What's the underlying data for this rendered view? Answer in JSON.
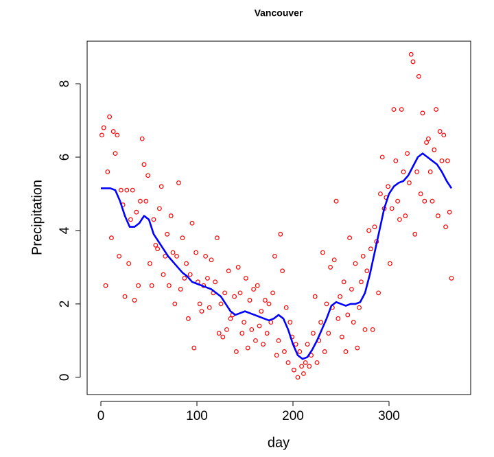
{
  "chart_data": {
    "type": "scatter",
    "title": "Vancouver",
    "xlabel": "day",
    "ylabel": "Precipitation",
    "xlim": [
      -14.3,
      385
    ],
    "ylim": [
      -0.47,
      9.16
    ],
    "xticks": [
      0,
      100,
      200,
      300
    ],
    "yticks": [
      0,
      2,
      4,
      6,
      8
    ],
    "series": [
      {
        "mode": "points",
        "color": "#ff0000",
        "x": [
          1,
          3,
          5,
          7,
          9,
          11,
          13,
          15,
          17,
          19,
          21,
          23,
          25,
          27,
          29,
          31,
          33,
          35,
          37,
          39,
          41,
          43,
          45,
          47,
          49,
          51,
          53,
          55,
          57,
          59,
          61,
          63,
          65,
          67,
          69,
          71,
          73,
          75,
          77,
          79,
          81,
          83,
          85,
          87,
          89,
          91,
          93,
          95,
          97,
          99,
          101,
          103,
          105,
          107,
          109,
          111,
          113,
          115,
          117,
          119,
          121,
          123,
          125,
          127,
          129,
          131,
          133,
          135,
          137,
          139,
          141,
          143,
          145,
          147,
          149,
          151,
          153,
          155,
          157,
          159,
          161,
          163,
          165,
          167,
          169,
          171,
          173,
          175,
          177,
          179,
          181,
          183,
          185,
          187,
          189,
          191,
          193,
          195,
          197,
          199,
          201,
          203,
          205,
          207,
          209,
          211,
          213,
          215,
          217,
          219,
          221,
          223,
          225,
          227,
          229,
          231,
          233,
          235,
          237,
          239,
          241,
          243,
          245,
          247,
          249,
          251,
          253,
          255,
          257,
          259,
          261,
          263,
          265,
          267,
          269,
          271,
          273,
          275,
          277,
          279,
          281,
          283,
          285,
          287,
          289,
          291,
          293,
          295,
          297,
          299,
          301,
          303,
          305,
          307,
          309,
          311,
          313,
          315,
          317,
          319,
          321,
          323,
          325,
          327,
          329,
          331,
          333,
          335,
          337,
          339,
          341,
          343,
          345,
          347,
          349,
          351,
          353,
          355,
          357,
          359,
          361,
          363,
          365
        ],
        "values": [
          6.6,
          6.8,
          2.5,
          5.6,
          7.1,
          3.8,
          6.7,
          6.1,
          6.6,
          3.3,
          5.1,
          4.7,
          2.2,
          5.1,
          3.1,
          4.3,
          5.1,
          2.1,
          4.5,
          2.5,
          4.8,
          6.5,
          5.8,
          4.8,
          5.5,
          3.1,
          2.5,
          4.3,
          3.6,
          3.5,
          4.6,
          5.2,
          2.8,
          3.3,
          3.9,
          2.5,
          4.4,
          3.4,
          2.0,
          3.3,
          5.3,
          2.4,
          3.8,
          2.7,
          3.1,
          1.6,
          2.8,
          4.2,
          0.8,
          3.4,
          2.6,
          2.0,
          1.8,
          2.5,
          3.3,
          2.7,
          1.9,
          3.2,
          2.3,
          2.6,
          3.8,
          1.2,
          2.0,
          1.1,
          2.3,
          1.3,
          2.9,
          1.6,
          1.7,
          2.2,
          0.7,
          3.0,
          2.3,
          1.2,
          1.5,
          2.7,
          0.8,
          2.1,
          1.3,
          2.4,
          1.0,
          2.5,
          1.4,
          1.8,
          0.9,
          2.1,
          1.2,
          2.0,
          1.5,
          2.3,
          3.3,
          0.6,
          1.0,
          3.9,
          2.9,
          0.7,
          1.9,
          0.4,
          1.5,
          1.1,
          0.2,
          0.9,
          0.0,
          0.7,
          0.3,
          0.1,
          0.4,
          0.9,
          0.3,
          0.6,
          1.2,
          2.2,
          0.4,
          1.0,
          1.5,
          3.4,
          0.7,
          2.0,
          1.2,
          3.0,
          1.9,
          3.2,
          4.8,
          1.6,
          2.2,
          1.1,
          2.6,
          0.7,
          1.7,
          3.8,
          2.4,
          1.5,
          3.1,
          0.8,
          1.9,
          2.6,
          3.3,
          1.3,
          2.9,
          4.0,
          3.5,
          1.3,
          4.1,
          3.7,
          2.3,
          5.0,
          6.0,
          4.6,
          4.9,
          5.2,
          3.1,
          4.6,
          7.3,
          5.9,
          4.8,
          4.3,
          7.3,
          5.6,
          4.4,
          6.1,
          5.3,
          8.8,
          8.6,
          3.9,
          5.6,
          8.2,
          5.0,
          7.2,
          4.8,
          6.4,
          6.5,
          5.6,
          4.8,
          6.2,
          7.3,
          4.4,
          6.7,
          5.9,
          6.6,
          4.1,
          5.9,
          4.5,
          2.7
        ]
      },
      {
        "mode": "line",
        "color": "#0000ff",
        "x": [
          0,
          5,
          10,
          15,
          20,
          25,
          30,
          35,
          40,
          45,
          50,
          55,
          60,
          65,
          70,
          75,
          80,
          85,
          90,
          95,
          100,
          105,
          110,
          115,
          120,
          125,
          130,
          135,
          140,
          145,
          150,
          155,
          160,
          165,
          170,
          175,
          180,
          185,
          190,
          195,
          200,
          205,
          210,
          215,
          220,
          225,
          230,
          235,
          240,
          245,
          250,
          255,
          260,
          265,
          270,
          275,
          280,
          285,
          290,
          295,
          300,
          305,
          310,
          315,
          320,
          325,
          330,
          335,
          340,
          345,
          350,
          355,
          360,
          365
        ],
        "values": [
          5.15,
          5.15,
          5.15,
          5.1,
          4.8,
          4.4,
          4.1,
          4.1,
          4.2,
          4.4,
          4.3,
          3.9,
          3.7,
          3.5,
          3.3,
          3.15,
          3.0,
          2.85,
          2.75,
          2.6,
          2.55,
          2.5,
          2.45,
          2.4,
          2.3,
          2.2,
          2.0,
          1.8,
          1.7,
          1.75,
          1.8,
          1.75,
          1.7,
          1.65,
          1.6,
          1.55,
          1.6,
          1.7,
          1.6,
          1.3,
          0.9,
          0.6,
          0.5,
          0.55,
          0.75,
          1.0,
          1.3,
          1.6,
          1.95,
          2.05,
          2.0,
          1.95,
          2.0,
          2.0,
          2.05,
          2.3,
          2.8,
          3.4,
          4.0,
          4.6,
          5.0,
          5.2,
          5.3,
          5.35,
          5.5,
          5.75,
          6.0,
          6.1,
          6.0,
          5.9,
          5.8,
          5.6,
          5.35,
          5.15
        ]
      }
    ]
  }
}
